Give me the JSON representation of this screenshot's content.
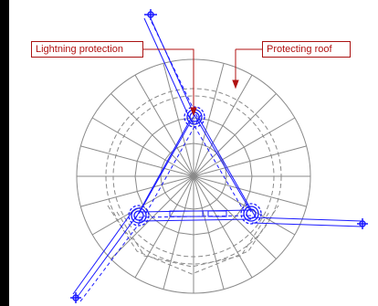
{
  "labels": {
    "lightning_protection": "Lightning protection",
    "protecting_roof": "Protecting roof"
  },
  "colors": {
    "background": "#ffffff",
    "structure_grey": "#8a8a8a",
    "tower_blue": "#1a1aff",
    "callout_red": "#b01010",
    "left_bar": "#000000"
  },
  "icons": [
    "lightning-rod-icon",
    "anchor-icon"
  ]
}
